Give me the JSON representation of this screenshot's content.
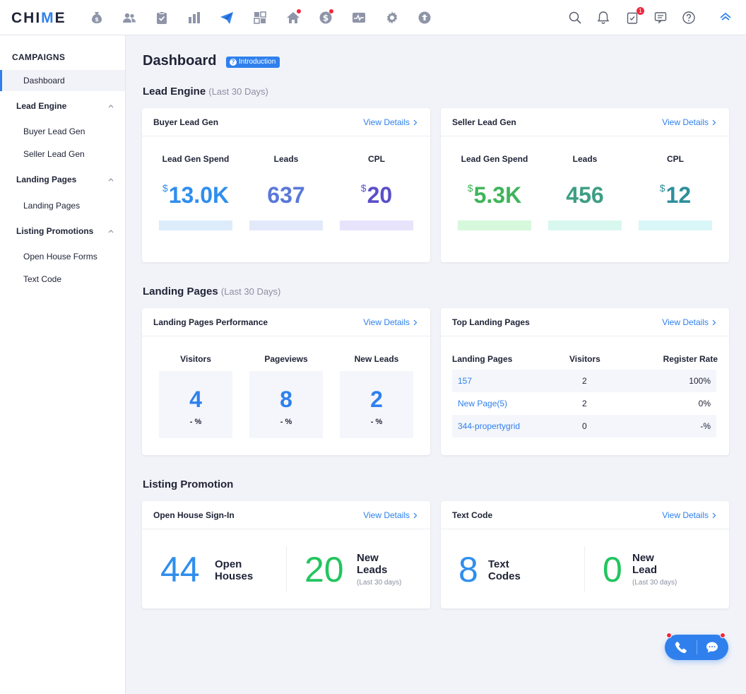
{
  "app": {
    "logo_main": "CHI",
    "logo_v": "M",
    "logo_end": "E"
  },
  "topbar": {
    "nav_icons": [
      "money-bag-icon",
      "people-icon",
      "clipboard-icon",
      "bar-chart-icon",
      "send-icon",
      "dashboard-grid-icon",
      "home-icon",
      "dollar-icon",
      "pulse-icon",
      "gear-icon",
      "upload-icon"
    ],
    "tools_badge": "1"
  },
  "sidebar": {
    "title": "CAMPAIGNS",
    "items": [
      {
        "label": "Dashboard"
      },
      {
        "label": "Lead Engine"
      },
      {
        "label": "Buyer Lead Gen"
      },
      {
        "label": "Seller Lead Gen"
      },
      {
        "label": "Landing Pages"
      },
      {
        "label": "Landing Pages"
      },
      {
        "label": "Listing Promotions"
      },
      {
        "label": "Open House Forms"
      },
      {
        "label": "Text Code"
      }
    ]
  },
  "main": {
    "title": "Dashboard",
    "intro_badge": "Introduction",
    "view_details": "View Details",
    "lead_engine": {
      "title": "Lead Engine",
      "period": "(Last 30 Days)",
      "buyer": {
        "title": "Buyer Lead Gen",
        "spend_label": "Lead Gen Spend",
        "spend_cur": "$",
        "spend_value": "13.0K",
        "leads_label": "Leads",
        "leads_value": "637",
        "cpl_label": "CPL",
        "cpl_cur": "$",
        "cpl_value": "20"
      },
      "seller": {
        "title": "Seller Lead Gen",
        "spend_label": "Lead Gen Spend",
        "spend_cur": "$",
        "spend_value": "5.3K",
        "leads_label": "Leads",
        "leads_value": "456",
        "cpl_label": "CPL",
        "cpl_cur": "$",
        "cpl_value": "12"
      },
      "colors": {
        "buyer_spend": "#2f8eed",
        "buyer_leads": "#5a78d8",
        "buyer_cpl": "#5b4fc9",
        "seller_spend": "#3fb45a",
        "seller_leads": "#3e9e83",
        "seller_cpl": "#2f8f9c"
      }
    },
    "landing_pages": {
      "title": "Landing Pages",
      "period": "(Last 30 Days)",
      "performance": {
        "title": "Landing Pages Performance",
        "visitors_label": "Visitors",
        "visitors_value": "4",
        "visitors_change": "- %",
        "pageviews_label": "Pageviews",
        "pageviews_value": "8",
        "pageviews_change": "- %",
        "newleads_label": "New Leads",
        "newleads_value": "2",
        "newleads_change": "- %"
      },
      "top": {
        "title": "Top Landing Pages",
        "columns": [
          "Landing Pages",
          "Visitors",
          "Register Rate"
        ],
        "rows": [
          {
            "page": "157",
            "visitors": "2",
            "rate": "100%"
          },
          {
            "page": "New Page(5)",
            "visitors": "2",
            "rate": "0%"
          },
          {
            "page": "344-propertygrid",
            "visitors": "0",
            "rate": "-%"
          }
        ]
      }
    },
    "listing_promotion": {
      "title": "Listing Promotion",
      "open_house": {
        "title": "Open House Sign-In",
        "count": "44",
        "count_label_1": "Open",
        "count_label_2": "Houses",
        "leads": "20",
        "leads_label_1": "New",
        "leads_label_2": "Leads",
        "leads_note": "(Last 30 days)"
      },
      "text_code": {
        "title": "Text Code",
        "count": "8",
        "count_label_1": "Text",
        "count_label_2": "Codes",
        "leads": "0",
        "leads_label_1": "New",
        "leads_label_2": "Lead",
        "leads_note": "(Last 30 days)"
      }
    }
  }
}
